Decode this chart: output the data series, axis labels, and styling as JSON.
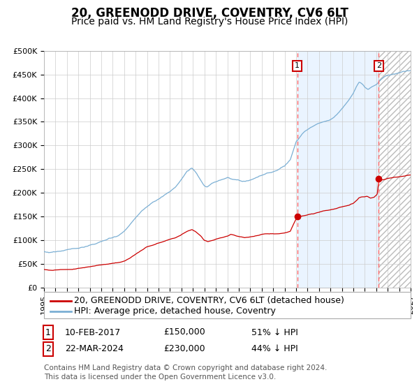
{
  "title": "20, GREENODD DRIVE, COVENTRY, CV6 6LT",
  "subtitle": "Price paid vs. HM Land Registry's House Price Index (HPI)",
  "ylim": [
    0,
    500000
  ],
  "yticks": [
    0,
    50000,
    100000,
    150000,
    200000,
    250000,
    300000,
    350000,
    400000,
    450000,
    500000
  ],
  "ytick_labels": [
    "£0",
    "£50K",
    "£100K",
    "£150K",
    "£200K",
    "£250K",
    "£300K",
    "£350K",
    "£400K",
    "£450K",
    "£500K"
  ],
  "x_start_year": 1995,
  "x_end_year": 2027,
  "hpi_color": "#7bafd4",
  "price_color": "#cc0000",
  "grid_color": "#cccccc",
  "shade_color_blue": "#ddeeff",
  "legend_label_price": "20, GREENODD DRIVE, COVENTRY, CV6 6LT (detached house)",
  "legend_label_hpi": "HPI: Average price, detached house, Coventry",
  "sale1_date": 2017.1,
  "sale1_price": 150000,
  "sale2_date": 2024.22,
  "sale2_price": 230000,
  "sale1_text": "10-FEB-2017",
  "sale1_val": "£150,000",
  "sale1_pct": "51% ↓ HPI",
  "sale2_text": "22-MAR-2024",
  "sale2_val": "£230,000",
  "sale2_pct": "44% ↓ HPI",
  "footer": "Contains HM Land Registry data © Crown copyright and database right 2024.\nThis data is licensed under the Open Government Licence v3.0.",
  "title_fontsize": 12,
  "subtitle_fontsize": 10,
  "tick_fontsize": 8,
  "legend_fontsize": 9,
  "annot_fontsize": 9,
  "footer_fontsize": 7.5
}
